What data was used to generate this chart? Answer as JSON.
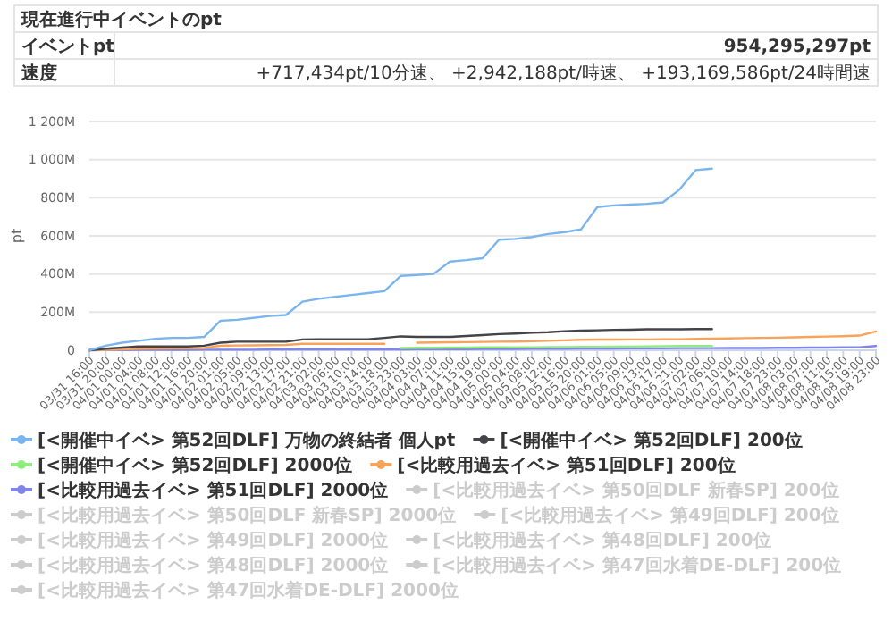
{
  "chart_data": {
    "type": "line",
    "ylabel": "pt",
    "annotations": [
      "現在進行中イベントのpt",
      "イベントpt",
      "954,295,297pt",
      "速度",
      "+717,434pt/10分速、 +2,942,188pt/時速、 +193,169,586pt/24時間速"
    ],
    "categories": [
      "03/31 16:00",
      "03/31 20:00",
      "04/01 00:00",
      "04/01 04:00",
      "04/01 08:00",
      "04/01 12:00",
      "04/01 16:00",
      "04/01 20:00",
      "04/02 01:00",
      "04/02 05:00",
      "04/02 09:00",
      "04/02 13:00",
      "04/02 17:00",
      "04/02 21:00",
      "04/03 02:00",
      "04/03 06:00",
      "04/03 10:00",
      "04/03 14:00",
      "04/03 18:00",
      "04/03 23:00",
      "04/04 03:00",
      "04/04 07:00",
      "04/04 11:00",
      "04/04 15:00",
      "04/04 19:00",
      "04/05 00:00",
      "04/05 04:00",
      "04/05 08:00",
      "04/05 12:00",
      "04/05 16:00",
      "04/05 20:00",
      "04/06 01:00",
      "04/06 05:00",
      "04/06 09:00",
      "04/06 13:00",
      "04/06 17:00",
      "04/06 21:00",
      "04/07 02:00",
      "04/07 06:00",
      "04/07 10:00",
      "04/07 14:00",
      "04/07 18:00",
      "04/07 23:00",
      "04/08 03:00",
      "04/08 07:00",
      "04/08 11:00",
      "04/08 15:00",
      "04/08 19:00",
      "04/08 23:00"
    ],
    "ylim": [
      0,
      1200
    ],
    "yticks": [
      {
        "value": 0,
        "label": "0"
      },
      {
        "value": 200,
        "label": "200M"
      },
      {
        "value": 400,
        "label": "400M"
      },
      {
        "value": 600,
        "label": "600M"
      },
      {
        "value": 800,
        "label": "800M"
      },
      {
        "value": 1000,
        "label": "1 000M"
      },
      {
        "value": 1200,
        "label": "1 200M"
      }
    ],
    "grid": "y",
    "legend": "bottom",
    "marker": "none",
    "line_style": "solid",
    "series": [
      {
        "name": "[<開催中イベ> 第52回DLF] 万物の終結者 個人pt",
        "color": "#7cb5ec",
        "values": [
          0,
          24,
          40,
          50,
          60,
          65,
          65,
          70,
          155,
          160,
          170,
          180,
          185,
          255,
          270,
          280,
          290,
          300,
          310,
          390,
          395,
          400,
          465,
          473,
          483,
          580,
          584,
          594,
          610,
          620,
          634,
          751,
          760,
          764,
          768,
          776,
          842,
          945,
          953,
          null,
          null,
          null,
          null,
          null,
          null,
          null,
          null,
          null,
          null
        ]
      },
      {
        "name": "[<開催中イベ> 第52回DLF] 200位",
        "color": "#434348",
        "values": [
          0,
          8,
          14,
          20,
          20,
          20,
          20,
          24,
          40,
          45,
          45,
          45,
          45,
          57,
          58,
          58,
          58,
          58,
          65,
          73,
          70,
          70,
          70,
          75,
          80,
          85,
          88,
          92,
          95,
          100,
          103,
          105,
          107,
          108,
          110,
          110,
          110,
          111,
          111,
          null,
          null,
          null,
          null,
          null,
          null,
          null,
          null,
          null,
          null
        ]
      },
      {
        "name": "[<開催中イベ> 第52回DLF] 2000位",
        "color": "#90ed7d",
        "values": [
          null,
          null,
          null,
          null,
          null,
          null,
          null,
          null,
          null,
          null,
          null,
          null,
          null,
          null,
          null,
          null,
          null,
          null,
          null,
          12,
          13,
          13,
          14,
          14,
          15,
          15,
          16,
          16,
          17,
          17,
          18,
          18,
          19,
          19,
          20,
          21,
          22,
          22,
          22,
          null,
          null,
          null,
          null,
          null,
          null,
          null,
          null,
          null,
          null
        ]
      },
      {
        "name": "[<比較用過去イベ> 第51回DLF] 200位",
        "color": "#f7a35c",
        "values": [
          0,
          2,
          4,
          8,
          9,
          10,
          11,
          12,
          24,
          25,
          26,
          27,
          28,
          34,
          34,
          34,
          34,
          34,
          34,
          null,
          40,
          41,
          42,
          43,
          44,
          45,
          46,
          48,
          50,
          52,
          55,
          56,
          56,
          57,
          57,
          58,
          58,
          60,
          61,
          62,
          64,
          65,
          66,
          68,
          70,
          72,
          74,
          77,
          99
        ]
      },
      {
        "name": "[<比較用過去イベ> 第51回DLF] 2000位",
        "color": "#8085e9",
        "values": [
          0,
          1,
          1,
          2,
          2,
          2,
          2,
          3,
          3,
          3,
          3,
          4,
          4,
          4,
          4,
          4,
          5,
          5,
          5,
          5,
          6,
          6,
          6,
          6,
          7,
          7,
          7,
          8,
          8,
          8,
          9,
          9,
          9,
          10,
          10,
          10,
          11,
          11,
          11,
          12,
          12,
          12,
          13,
          13,
          14,
          14,
          15,
          16,
          22
        ]
      },
      {
        "name": "[<比較用過去イベ> 第50回DLF 新春SP] 200位",
        "color": "#cccccc",
        "values": [
          null,
          null,
          null,
          null,
          null,
          null,
          null,
          null,
          null,
          null,
          null,
          null,
          null,
          null,
          null,
          null,
          null,
          null,
          null,
          null,
          null,
          null,
          null,
          null,
          null,
          null,
          null,
          null,
          null,
          null,
          null,
          null,
          null,
          null,
          null,
          null,
          null,
          null,
          null,
          null,
          null,
          null,
          null,
          null,
          null,
          null,
          null,
          null,
          null
        ]
      },
      {
        "name": "[<比較用過去イベ> 第50回DLF 新春SP] 2000位",
        "color": "#cccccc",
        "values": [
          null,
          null,
          null,
          null,
          null,
          null,
          null,
          null,
          null,
          null,
          null,
          null,
          null,
          null,
          null,
          null,
          null,
          null,
          null,
          null,
          null,
          null,
          null,
          null,
          null,
          null,
          null,
          null,
          null,
          null,
          null,
          null,
          null,
          null,
          null,
          null,
          null,
          null,
          null,
          null,
          null,
          null,
          null,
          null,
          null,
          null,
          null,
          null,
          null
        ]
      },
      {
        "name": "[<比較用過去イベ> 第49回DLF] 200位",
        "color": "#cccccc",
        "values": [
          null,
          null,
          null,
          null,
          null,
          null,
          null,
          null,
          null,
          null,
          null,
          null,
          null,
          null,
          null,
          null,
          null,
          null,
          null,
          null,
          null,
          null,
          null,
          null,
          null,
          null,
          null,
          null,
          null,
          null,
          null,
          null,
          null,
          null,
          null,
          null,
          null,
          null,
          null,
          null,
          null,
          null,
          null,
          null,
          null,
          null,
          null,
          null,
          null
        ]
      },
      {
        "name": "[<比較用過去イベ> 第49回DLF] 2000位",
        "color": "#cccccc",
        "values": [
          null,
          null,
          null,
          null,
          null,
          null,
          null,
          null,
          null,
          null,
          null,
          null,
          null,
          null,
          null,
          null,
          null,
          null,
          null,
          null,
          null,
          null,
          null,
          null,
          null,
          null,
          null,
          null,
          null,
          null,
          null,
          null,
          null,
          null,
          null,
          null,
          null,
          null,
          null,
          null,
          null,
          null,
          null,
          null,
          null,
          null,
          null,
          null,
          null
        ]
      },
      {
        "name": "[<比較用過去イベ> 第48回DLF] 200位",
        "color": "#cccccc",
        "values": [
          null,
          null,
          null,
          null,
          null,
          null,
          null,
          null,
          null,
          null,
          null,
          null,
          null,
          null,
          null,
          null,
          null,
          null,
          null,
          null,
          null,
          null,
          null,
          null,
          null,
          null,
          null,
          null,
          null,
          null,
          null,
          null,
          null,
          null,
          null,
          null,
          null,
          null,
          null,
          null,
          null,
          null,
          null,
          null,
          null,
          null,
          null,
          null,
          null
        ]
      },
      {
        "name": "[<比較用過去イベ> 第48回DLF] 2000位",
        "color": "#cccccc",
        "values": [
          null,
          null,
          null,
          null,
          null,
          null,
          null,
          null,
          null,
          null,
          null,
          null,
          null,
          null,
          null,
          null,
          null,
          null,
          null,
          null,
          null,
          null,
          null,
          null,
          null,
          null,
          null,
          null,
          null,
          null,
          null,
          null,
          null,
          null,
          null,
          null,
          null,
          null,
          null,
          null,
          null,
          null,
          null,
          null,
          null,
          null,
          null,
          null,
          null
        ]
      },
      {
        "name": "[<比較用過去イベ> 第47回水着DE-DLF] 200位",
        "color": "#cccccc",
        "values": [
          null,
          null,
          null,
          null,
          null,
          null,
          null,
          null,
          null,
          null,
          null,
          null,
          null,
          null,
          null,
          null,
          null,
          null,
          null,
          null,
          null,
          null,
          null,
          null,
          null,
          null,
          null,
          null,
          null,
          null,
          null,
          null,
          null,
          null,
          null,
          null,
          null,
          null,
          null,
          null,
          null,
          null,
          null,
          null,
          null,
          null,
          null,
          null,
          null
        ]
      },
      {
        "name": "[<比較用過去イベ> 第47回水着DE-DLF] 2000位",
        "color": "#cccccc",
        "values": [
          null,
          null,
          null,
          null,
          null,
          null,
          null,
          null,
          null,
          null,
          null,
          null,
          null,
          null,
          null,
          null,
          null,
          null,
          null,
          null,
          null,
          null,
          null,
          null,
          null,
          null,
          null,
          null,
          null,
          null,
          null,
          null,
          null,
          null,
          null,
          null,
          null,
          null,
          null,
          null,
          null,
          null,
          null,
          null,
          null,
          null,
          null,
          null,
          null
        ]
      }
    ]
  }
}
